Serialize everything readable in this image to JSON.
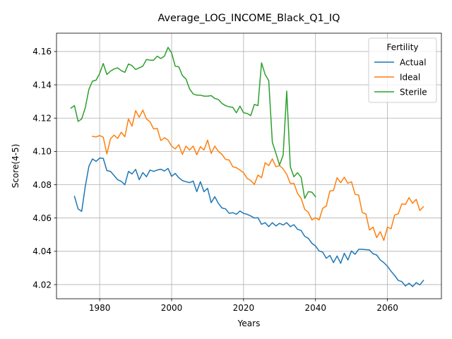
{
  "chart_data": {
    "type": "line",
    "title": "Average_LOG_INCOME_Black_Q1_IQ",
    "xlabel": "Years",
    "ylabel": "Score(4-5)",
    "xlim": [
      1968,
      2075
    ],
    "ylim": [
      4.0115,
      4.171
    ],
    "xticks": [
      1980,
      2000,
      2020,
      2040,
      2060
    ],
    "yticks": [
      4.02,
      4.04,
      4.06,
      4.08,
      4.1,
      4.12,
      4.14,
      4.16
    ],
    "grid": true,
    "legend": {
      "title": "Fertility",
      "position": "top-right"
    },
    "series": [
      {
        "name": "Actual",
        "color": "#1f77b4",
        "x": [
          1973,
          1974,
          1975,
          1976,
          1977,
          1978,
          1979,
          1980,
          1981,
          1982,
          1983,
          1984,
          1985,
          1986,
          1987,
          1988,
          1989,
          1990,
          1991,
          1992,
          1993,
          1994,
          1995,
          1996,
          1997,
          1998,
          1999,
          2000,
          2001,
          2002,
          2003,
          2004,
          2005,
          2006,
          2007,
          2008,
          2009,
          2010,
          2011,
          2012,
          2013,
          2014,
          2015,
          2016,
          2017,
          2018,
          2019,
          2020,
          2021,
          2022,
          2023,
          2024,
          2025,
          2026,
          2027,
          2028,
          2029,
          2030,
          2031,
          2032,
          2033,
          2034,
          2035,
          2036,
          2037,
          2038,
          2039,
          2040,
          2041,
          2042,
          2043,
          2044,
          2045,
          2046,
          2047,
          2048,
          2049,
          2050,
          2051,
          2052,
          2053,
          2054,
          2055,
          2056,
          2057,
          2058,
          2059,
          2060,
          2061,
          2062,
          2063,
          2064,
          2065,
          2066,
          2067,
          2068,
          2069,
          2070
        ],
        "values": [
          4.073,
          4.0655,
          4.064,
          4.079,
          4.091,
          4.0955,
          4.094,
          4.096,
          4.0958,
          4.0885,
          4.088,
          4.0855,
          4.083,
          4.082,
          4.08,
          4.088,
          4.0865,
          4.0892,
          4.083,
          4.0873,
          4.0848,
          4.0888,
          4.088,
          4.0888,
          4.0893,
          4.0882,
          4.0898,
          4.085,
          4.0868,
          4.0842,
          4.0825,
          4.0818,
          4.0812,
          4.0822,
          4.0758,
          4.0818,
          4.0758,
          4.0778,
          4.0692,
          4.0728,
          4.0688,
          4.066,
          4.0655,
          4.0628,
          4.0632,
          4.0622,
          4.0642,
          4.0628,
          4.0622,
          4.0612,
          4.06,
          4.0602,
          4.0562,
          4.0572,
          4.0548,
          4.0572,
          4.0552,
          4.0568,
          4.0558,
          4.0572,
          4.0548,
          4.056,
          4.0532,
          4.0525,
          4.049,
          4.0478,
          4.0448,
          4.0432,
          4.0402,
          4.0395,
          4.0358,
          4.0375,
          4.0332,
          4.0372,
          4.0328,
          4.0388,
          4.0348,
          4.0402,
          4.0382,
          4.0412,
          4.0412,
          4.041,
          4.0408,
          4.0385,
          4.0378,
          4.0348,
          4.0332,
          4.031,
          4.028,
          4.0255,
          4.0225,
          4.0218,
          4.0192,
          4.0208,
          4.0188,
          4.0212,
          4.0198,
          4.0225
        ]
      },
      {
        "name": "Ideal",
        "color": "#ff7f0e",
        "x": [
          1978,
          1979,
          1980,
          1981,
          1982,
          1983,
          1984,
          1985,
          1986,
          1987,
          1988,
          1989,
          1990,
          1991,
          1992,
          1993,
          1994,
          1995,
          1996,
          1997,
          1998,
          1999,
          2000,
          2001,
          2002,
          2003,
          2004,
          2005,
          2006,
          2007,
          2008,
          2009,
          2010,
          2011,
          2012,
          2013,
          2014,
          2015,
          2016,
          2017,
          2018,
          2019,
          2020,
          2021,
          2022,
          2023,
          2024,
          2025,
          2026,
          2027,
          2028,
          2029,
          2030,
          2031,
          2032,
          2033,
          2034,
          2035,
          2036,
          2037,
          2038,
          2039,
          2040,
          2041,
          2042,
          2043,
          2044,
          2045,
          2046,
          2047,
          2048,
          2049,
          2050,
          2051,
          2052,
          2053,
          2054,
          2055,
          2056,
          2057,
          2058,
          2059,
          2060,
          2061,
          2062,
          2063,
          2064,
          2065,
          2066,
          2067,
          2068,
          2069,
          2070
        ],
        "values": [
          4.109,
          4.1087,
          4.1095,
          4.1085,
          4.0985,
          4.1075,
          4.1098,
          4.1078,
          4.1115,
          4.1088,
          4.1195,
          4.1152,
          4.1245,
          4.1205,
          4.1248,
          4.1195,
          4.1178,
          4.1135,
          4.1138,
          4.1065,
          4.1082,
          4.1068,
          4.1032,
          4.1015,
          4.104,
          4.0982,
          4.1032,
          4.1008,
          4.1032,
          4.098,
          4.1028,
          4.1008,
          4.1068,
          4.0988,
          4.1032,
          4.1,
          4.0982,
          4.0952,
          4.0948,
          4.0908,
          4.0902,
          4.0888,
          4.0872,
          4.0838,
          4.0825,
          4.0802,
          4.0858,
          4.0842,
          4.0932,
          4.0915,
          4.0955,
          4.0908,
          4.0915,
          4.0895,
          4.0862,
          4.0808,
          4.0808,
          4.0748,
          4.0718,
          4.0652,
          4.0635,
          4.0588,
          4.0602,
          4.0588,
          4.0658,
          4.0672,
          4.0762,
          4.0765,
          4.0842,
          4.0812,
          4.0845,
          4.0808,
          4.0818,
          4.0742,
          4.0738,
          4.0632,
          4.0625,
          4.0528,
          4.0545,
          4.0482,
          4.0518,
          4.0465,
          4.0545,
          4.0535,
          4.0618,
          4.0625,
          4.0685,
          4.0682,
          4.0722,
          4.0688,
          4.0712,
          4.0645,
          4.0668
        ]
      },
      {
        "name": "Sterile",
        "color": "#2ca02c",
        "x": [
          1972,
          1973,
          1974,
          1975,
          1976,
          1977,
          1978,
          1979,
          1980,
          1981,
          1982,
          1983,
          1984,
          1985,
          1986,
          1987,
          1988,
          1989,
          1990,
          1991,
          1992,
          1993,
          1994,
          1995,
          1996,
          1997,
          1998,
          1999,
          2000,
          2001,
          2002,
          2003,
          2004,
          2005,
          2006,
          2007,
          2008,
          2009,
          2010,
          2011,
          2012,
          2013,
          2014,
          2015,
          2016,
          2017,
          2018,
          2019,
          2020,
          2021,
          2022,
          2023,
          2024,
          2025,
          2026,
          2027,
          2028,
          2029,
          2030,
          2031,
          2032,
          2033,
          2034,
          2035,
          2036,
          2037,
          2038,
          2039,
          2040
        ],
        "values": [
          4.126,
          4.1275,
          4.118,
          4.1195,
          4.1262,
          4.1372,
          4.1422,
          4.1428,
          4.1468,
          4.1528,
          4.1462,
          4.1482,
          4.1495,
          4.1502,
          4.1485,
          4.1475,
          4.1525,
          4.1515,
          4.1492,
          4.1502,
          4.1512,
          4.1552,
          4.1548,
          4.1548,
          4.1572,
          4.1558,
          4.1572,
          4.1625,
          4.1592,
          4.1512,
          4.1508,
          4.1455,
          4.1435,
          4.1375,
          4.1345,
          4.1338,
          4.1338,
          4.1332,
          4.1332,
          4.1335,
          4.1318,
          4.1312,
          4.1288,
          4.1275,
          4.1268,
          4.1265,
          4.1232,
          4.1272,
          4.1232,
          4.1228,
          4.1215,
          4.1282,
          4.1275,
          4.1532,
          4.1462,
          4.1425,
          4.1055,
          4.0988,
          4.0918,
          4.0978,
          4.1362,
          4.0908,
          4.0848,
          4.0872,
          4.0845,
          4.0718,
          4.0758,
          4.0755,
          4.0728
        ]
      }
    ]
  }
}
